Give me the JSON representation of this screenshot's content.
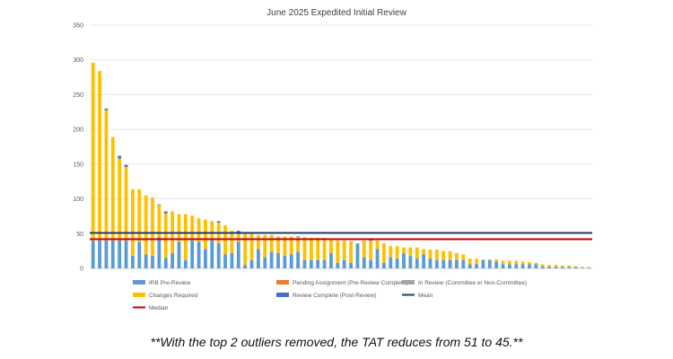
{
  "chart_data": {
    "type": "bar",
    "stacked": true,
    "title": "June 2025 Expedited Initial Review",
    "ylim": [
      0,
      350
    ],
    "yticks": [
      0,
      50,
      100,
      150,
      200,
      250,
      300,
      350
    ],
    "grid": true,
    "legend_position": "bottom",
    "series": [
      {
        "name": "IRB Pre-Review",
        "color": "#5B9BD5",
        "values": [
          40,
          40,
          40,
          40,
          40,
          40,
          18,
          38,
          20,
          18,
          45,
          15,
          22,
          38,
          12,
          40,
          38,
          28,
          40,
          36,
          20,
          22,
          38,
          5,
          12,
          28,
          16,
          24,
          22,
          18,
          20,
          24,
          12,
          12,
          12,
          12,
          22,
          8,
          12,
          8,
          36,
          16,
          12,
          28,
          8,
          16,
          14,
          22,
          18,
          14,
          20,
          14,
          12,
          12,
          12,
          12,
          12,
          6,
          6,
          12,
          12,
          10,
          6,
          6,
          6,
          6,
          6,
          6,
          3,
          2,
          2,
          2,
          2,
          2,
          1,
          1
        ]
      },
      {
        "name": "Pending Assignment (Pre-Review Complete)",
        "color": "#ED7D31",
        "values": [
          0,
          0,
          0,
          0,
          0,
          0,
          0,
          0,
          0,
          0,
          0,
          0,
          0,
          0,
          0,
          0,
          0,
          0,
          0,
          0,
          0,
          0,
          0,
          0,
          0,
          0,
          0,
          0,
          0,
          0,
          0,
          0,
          0,
          0,
          0,
          0,
          0,
          0,
          0,
          0,
          0,
          0,
          0,
          0,
          0,
          0,
          0,
          0,
          0,
          0,
          0,
          0,
          0,
          0,
          0,
          0,
          0,
          0,
          0,
          0,
          0,
          0,
          0,
          0,
          0,
          0,
          0,
          0,
          0,
          0,
          0,
          0,
          0,
          0,
          0,
          0
        ]
      },
      {
        "name": "In Review (Committee or Non-Committee)",
        "color": "#A5A5A5",
        "values": [
          0,
          0,
          0,
          0,
          0,
          0,
          0,
          0,
          0,
          0,
          0,
          0,
          0,
          0,
          0,
          0,
          0,
          0,
          0,
          0,
          0,
          0,
          0,
          0,
          0,
          0,
          0,
          0,
          0,
          0,
          0,
          0,
          0,
          0,
          0,
          0,
          0,
          0,
          0,
          0,
          0,
          0,
          0,
          0,
          0,
          0,
          0,
          0,
          0,
          0,
          0,
          0,
          0,
          0,
          0,
          0,
          0,
          0,
          0,
          0,
          0,
          0,
          0,
          0,
          0,
          0,
          0,
          0,
          0,
          0,
          0,
          0,
          0,
          0,
          0,
          0
        ]
      },
      {
        "name": "Changes Required",
        "color": "#FFC000",
        "values": [
          256,
          244,
          188,
          149,
          118,
          106,
          96,
          76,
          85,
          84,
          46,
          64,
          60,
          40,
          66,
          36,
          34,
          42,
          28,
          30,
          42,
          32,
          14,
          46,
          40,
          20,
          32,
          24,
          24,
          28,
          26,
          21,
          33,
          32,
          32,
          32,
          20,
          32,
          28,
          31,
          0,
          24,
          28,
          12,
          28,
          16,
          18,
          8,
          12,
          16,
          8,
          13,
          15,
          13,
          13,
          10,
          8,
          8,
          8,
          1,
          1,
          3,
          5,
          5,
          5,
          4,
          3,
          2,
          3,
          3,
          3,
          2,
          2,
          1,
          1,
          1
        ]
      },
      {
        "name": "Review Complete (Post-Review)",
        "color": "#4472C4",
        "values": [
          0,
          0,
          2,
          0,
          4,
          3,
          0,
          0,
          0,
          0,
          1,
          3,
          0,
          0,
          0,
          0,
          0,
          0,
          0,
          2,
          0,
          0,
          2,
          0,
          0,
          0,
          0,
          0,
          0,
          0,
          0,
          1,
          0,
          0,
          0,
          0,
          0,
          0,
          0,
          0,
          0,
          0,
          1,
          0,
          0,
          0,
          0,
          0,
          0,
          0,
          0,
          0,
          0,
          0,
          0,
          0,
          0,
          0,
          0,
          0,
          0,
          0,
          0,
          0,
          0,
          0,
          0,
          0,
          0,
          0,
          0,
          0,
          0,
          0,
          0,
          0
        ]
      }
    ],
    "reference_lines": [
      {
        "name": "Mean",
        "value": 51,
        "color": "#203864"
      },
      {
        "name": "Median",
        "value": 42,
        "color": "#C00000"
      }
    ]
  },
  "footnote": "**With the top 2 outliers removed, the TAT reduces from 51 to 45.**"
}
